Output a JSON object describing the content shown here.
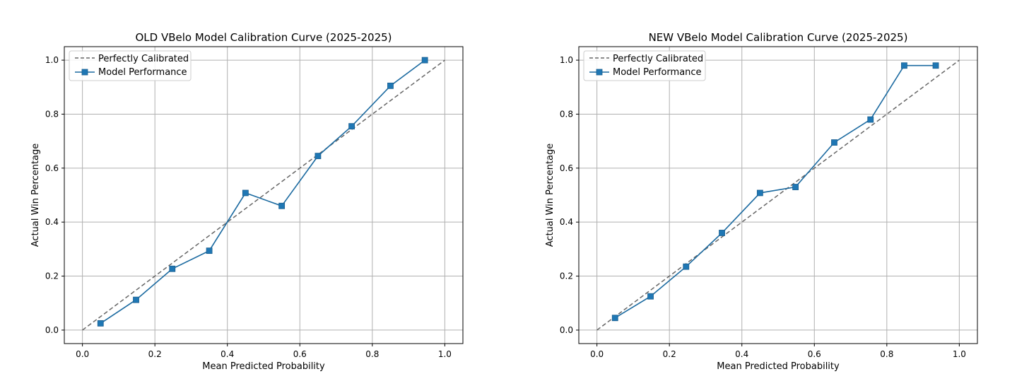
{
  "colors": {
    "series": "#1f77b4",
    "series_line": "#1b6aa0",
    "diagonal": "#666666",
    "grid": "#b0b0b0",
    "axes": "#000000"
  },
  "chart_data": [
    {
      "type": "line",
      "title": "OLD VBelo Model Calibration Curve (2025-2025)",
      "xlabel": "Mean Predicted Probability",
      "ylabel": "Actual Win Percentage",
      "xlim": [
        -0.05,
        1.05
      ],
      "ylim": [
        -0.05,
        1.05
      ],
      "xticks": [
        0.0,
        0.2,
        0.4,
        0.6,
        0.8,
        1.0
      ],
      "xtick_labels": [
        "0.0",
        "0.2",
        "0.4",
        "0.6",
        "0.8",
        "1.0"
      ],
      "yticks": [
        0.0,
        0.2,
        0.4,
        0.6,
        0.8,
        1.0
      ],
      "ytick_labels": [
        "0.0",
        "0.2",
        "0.4",
        "0.6",
        "0.8",
        "1.0"
      ],
      "grid": true,
      "legend_position": "top-left",
      "series": [
        {
          "name": "Perfectly Calibrated",
          "style": "dashed",
          "marker": "none",
          "x": [
            0,
            1
          ],
          "y": [
            0,
            1
          ]
        },
        {
          "name": "Model Performance",
          "style": "solid",
          "marker": "square",
          "x": [
            0.05,
            0.148,
            0.248,
            0.35,
            0.45,
            0.55,
            0.65,
            0.743,
            0.85,
            0.945
          ],
          "y": [
            0.025,
            0.112,
            0.227,
            0.294,
            0.508,
            0.46,
            0.645,
            0.755,
            0.905,
            1.0
          ]
        }
      ]
    },
    {
      "type": "line",
      "title": "NEW VBelo Model Calibration Curve (2025-2025)",
      "xlabel": "Mean Predicted Probability",
      "ylabel": "Actual Win Percentage",
      "xlim": [
        -0.05,
        1.05
      ],
      "ylim": [
        -0.05,
        1.05
      ],
      "xticks": [
        0.0,
        0.2,
        0.4,
        0.6,
        0.8,
        1.0
      ],
      "xtick_labels": [
        "0.0",
        "0.2",
        "0.4",
        "0.6",
        "0.8",
        "1.0"
      ],
      "yticks": [
        0.0,
        0.2,
        0.4,
        0.6,
        0.8,
        1.0
      ],
      "ytick_labels": [
        "0.0",
        "0.2",
        "0.4",
        "0.6",
        "0.8",
        "1.0"
      ],
      "grid": true,
      "legend_position": "top-left",
      "series": [
        {
          "name": "Perfectly Calibrated",
          "style": "dashed",
          "marker": "none",
          "x": [
            0,
            1
          ],
          "y": [
            0,
            1
          ]
        },
        {
          "name": "Model Performance",
          "style": "solid",
          "marker": "square",
          "x": [
            0.05,
            0.148,
            0.246,
            0.345,
            0.45,
            0.548,
            0.655,
            0.755,
            0.848,
            0.935
          ],
          "y": [
            0.045,
            0.125,
            0.235,
            0.36,
            0.508,
            0.53,
            0.695,
            0.78,
            0.98,
            0.98
          ]
        }
      ]
    }
  ]
}
